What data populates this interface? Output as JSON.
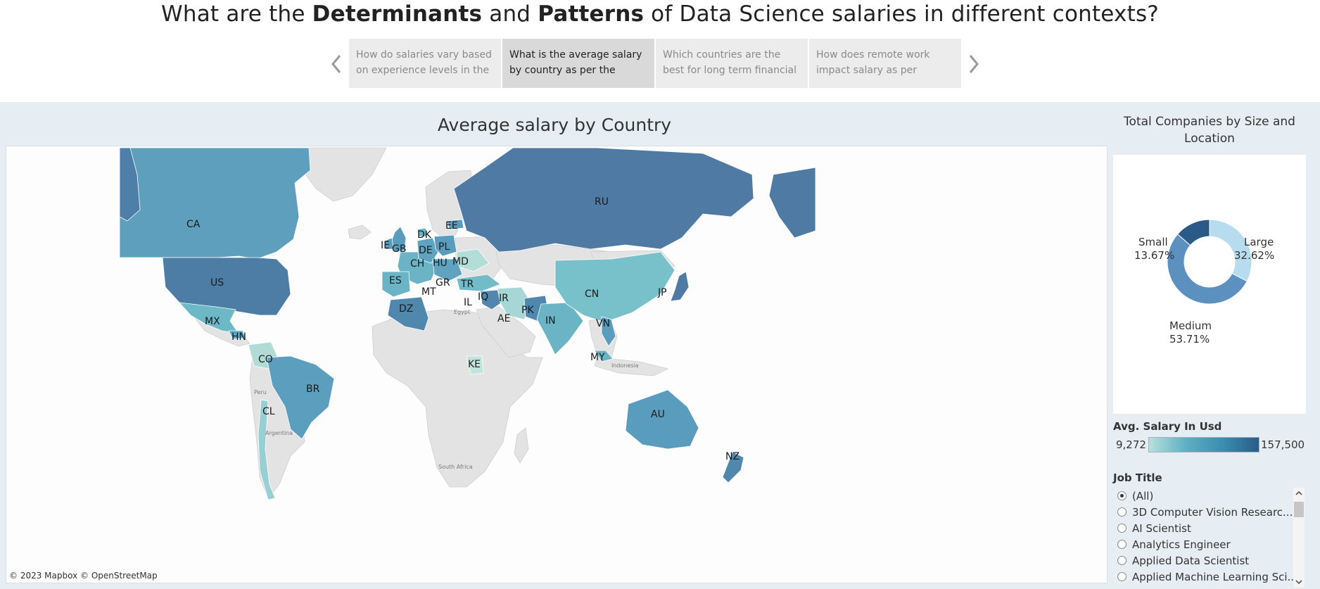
{
  "header": {
    "title_parts": [
      "What are the ",
      "Determinants",
      " and ",
      "Patterns",
      " of Data Science salaries in different contexts?"
    ],
    "story_points": [
      {
        "line1": "How do salaries vary based",
        "line2": "on experience levels in the"
      },
      {
        "line1": "What is the average salary",
        "line2": "by country as per the"
      },
      {
        "line1": "Which countries are the",
        "line2": "best for long term financial"
      },
      {
        "line1": "How does remote work",
        "line2": "impact salary as per"
      }
    ]
  },
  "map": {
    "title": "Average salary by Country",
    "attribution": "© 2023 Mapbox © OpenStreetMap",
    "country_labels": [
      "CA",
      "US",
      "MX",
      "HN",
      "CO",
      "BR",
      "CL",
      "GB",
      "IE",
      "DK",
      "EE",
      "DE",
      "PL",
      "CH",
      "HU",
      "MD",
      "ES",
      "GR",
      "TR",
      "MT",
      "DZ",
      "IL",
      "IQ",
      "IR",
      "AE",
      "PK",
      "IN",
      "CN",
      "VN",
      "JP",
      "MY",
      "KE",
      "RU",
      "AU",
      "NZ"
    ],
    "place_names": [
      "Egypt",
      "Peru",
      "Argentina",
      "South Africa",
      "Indonesia"
    ]
  },
  "donut": {
    "title": "Total Companies by Size and Location",
    "segments": [
      {
        "name": "Large",
        "percent_label": "32.62%",
        "share": 32.62,
        "color": "#b7dcef"
      },
      {
        "name": "Medium",
        "percent_label": "53.71%",
        "share": 53.71,
        "color": "#5b90bf"
      },
      {
        "name": "Small",
        "percent_label": "13.67%",
        "share": 13.67,
        "color": "#2a5a87"
      }
    ]
  },
  "legend": {
    "title": "Avg. Salary In Usd",
    "min": "9,272",
    "max": "157,500"
  },
  "filter": {
    "title": "Job Title",
    "items": [
      "(All)",
      "3D Computer Vision Researc...",
      "AI Scientist",
      "Analytics Engineer",
      "Applied Data Scientist",
      "Applied Machine Learning Sci..."
    ],
    "selected": 0
  }
}
